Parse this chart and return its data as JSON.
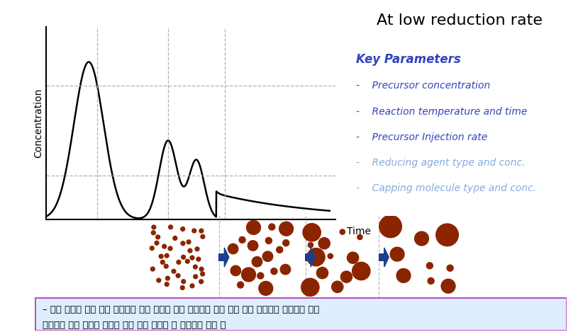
{
  "title": "At low reduction rate",
  "title_fontsize": 16,
  "key_params_label": "Key Parameters",
  "key_params_color": "#3344bb",
  "key_params_fontsize": 12,
  "bullet_items_dark": [
    "Precursor concentration",
    "Reaction temperature and time",
    "Precursor Injection rate"
  ],
  "bullet_items_light": [
    "Reducing agent type and conc.",
    "Capping molecule type and conc."
  ],
  "bullet_color_dark": "#3344bb",
  "bullet_color_light": "#88aadd",
  "bullet_fontsize": 10,
  "ylabel": "Concentration",
  "xlabel": "Time",
  "bg_color": "#ffffff",
  "curve_color": "#000000",
  "dashed_line_color": "#aaaaaa",
  "particle_color": "#8B2500",
  "arrow_color": "#1a3f8f",
  "footer_text_line1": "– 여러 단계에 걸쳐 핵이 생성되고 먼저 생성된 핵이 성장하는 동안 다음 핵이 생성되는 과정으로 인해",
  "footer_text_line2": "입자마다 성장 정도가 다르게 되고 최종 입자는 다 분산성을 띄게 됨",
  "footer_bg": "#ddeeff",
  "footer_border": "#bb44bb"
}
